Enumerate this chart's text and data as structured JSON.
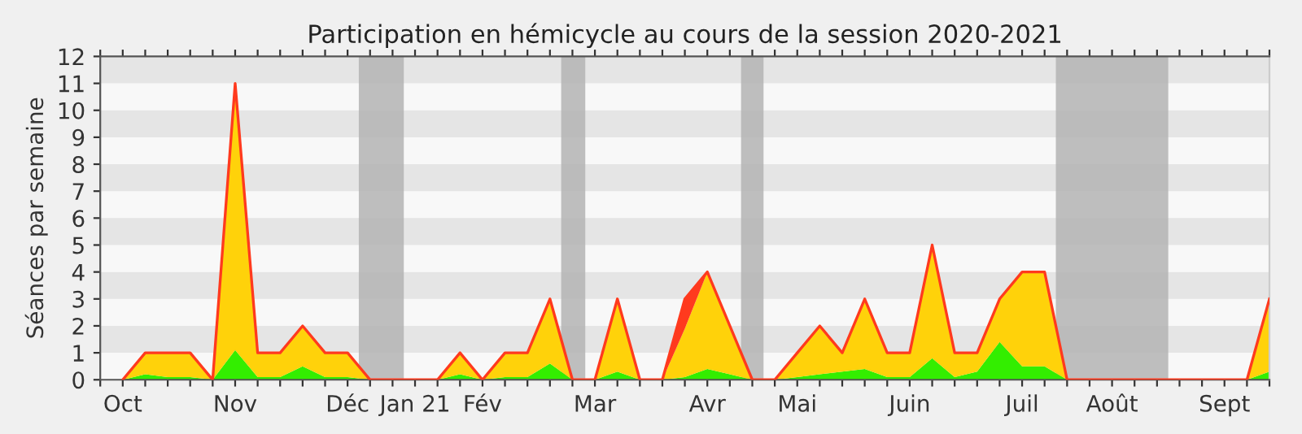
{
  "chart_data": {
    "type": "area",
    "stacked": true,
    "title": "Participation en hémicycle au cours de la session 2020-2021",
    "ylabel": "Séances par semaine",
    "x": [
      "2020-10-05",
      "2020-10-12",
      "2020-10-19",
      "2020-10-26",
      "2020-11-02",
      "2020-11-09",
      "2020-11-16",
      "2020-11-23",
      "2020-11-30",
      "2020-12-07",
      "2020-12-14",
      "2020-12-21",
      "2020-12-28",
      "2021-01-04",
      "2021-01-11",
      "2021-01-18",
      "2021-01-25",
      "2021-02-01",
      "2021-02-08",
      "2021-02-15",
      "2021-02-22",
      "2021-03-01",
      "2021-03-08",
      "2021-03-15",
      "2021-03-22",
      "2021-03-29",
      "2021-04-05",
      "2021-04-12",
      "2021-04-19",
      "2021-04-26",
      "2021-05-03",
      "2021-05-10",
      "2021-05-17",
      "2021-05-24",
      "2021-05-31",
      "2021-06-07",
      "2021-06-14",
      "2021-06-21",
      "2021-06-28",
      "2021-07-05",
      "2021-07-12",
      "2021-07-19",
      "2021-07-26",
      "2021-08-02",
      "2021-08-09",
      "2021-08-16",
      "2021-08-23",
      "2021-08-30",
      "2021-09-06",
      "2021-09-13",
      "2021-09-20",
      "2021-09-27"
    ],
    "series": [
      {
        "color": "#33ee00",
        "values": [
          0,
          0.2,
          0.1,
          0.1,
          0,
          1.1,
          0.1,
          0.1,
          0.5,
          0.1,
          0.1,
          0,
          0,
          0,
          0,
          0.2,
          0,
          0.1,
          0.1,
          0.6,
          0,
          0,
          0.3,
          0,
          0,
          0.1,
          0.4,
          0.2,
          0,
          0,
          0.1,
          0.2,
          0.3,
          0.4,
          0.1,
          0.1,
          0.8,
          0.1,
          0.3,
          1.4,
          0.5,
          0.5,
          0,
          0,
          0,
          0,
          0,
          0,
          0,
          0,
          0,
          0.3
        ]
      },
      {
        "color": "#ffd20a",
        "values": [
          0,
          0.8,
          0.9,
          0.9,
          0,
          9.9,
          0.9,
          0.9,
          1.5,
          0.9,
          0.9,
          0,
          0,
          0,
          0,
          0.8,
          0,
          0.9,
          0.9,
          2.4,
          0,
          0,
          2.7,
          0,
          0,
          1.8,
          3.6,
          1.8,
          0,
          0,
          0.9,
          1.8,
          0.7,
          2.6,
          0.9,
          0.9,
          4.2,
          0.9,
          0.7,
          1.6,
          3.5,
          3.5,
          0,
          0,
          0,
          0,
          0,
          0,
          0,
          0,
          0,
          2.7
        ]
      },
      {
        "color": "#ff3a1e",
        "values": [
          null,
          null,
          null,
          null,
          null,
          null,
          null,
          null,
          null,
          null,
          null,
          null,
          null,
          null,
          null,
          null,
          null,
          null,
          null,
          null,
          null,
          null,
          null,
          null,
          0,
          1.1,
          0,
          null,
          null,
          null,
          null,
          null,
          null,
          null,
          null,
          null,
          null,
          null,
          null,
          null,
          null,
          null,
          null,
          null,
          null,
          null,
          null,
          null,
          null,
          null,
          null,
          null
        ]
      }
    ],
    "xlim": [
      "2020-09-28",
      "2021-09-27"
    ],
    "ylim": [
      0,
      12
    ],
    "yticks": [
      0,
      1,
      2,
      3,
      4,
      5,
      6,
      7,
      8,
      9,
      10,
      11,
      12
    ],
    "xticks": [
      {
        "value": "2020-09-28",
        "label": null
      },
      {
        "value": "2020-10-05",
        "label": "Oct"
      },
      {
        "value": "2020-10-12",
        "label": null
      },
      {
        "value": "2020-10-19",
        "label": null
      },
      {
        "value": "2020-10-26",
        "label": null
      },
      {
        "value": "2020-11-02",
        "label": null
      },
      {
        "value": "2020-11-09",
        "label": "Nov"
      },
      {
        "value": "2020-11-16",
        "label": null
      },
      {
        "value": "2020-11-23",
        "label": null
      },
      {
        "value": "2020-11-30",
        "label": null
      },
      {
        "value": "2020-12-07",
        "label": null
      },
      {
        "value": "2020-12-14",
        "label": "Déc"
      },
      {
        "value": "2020-12-21",
        "label": null
      },
      {
        "value": "2020-12-28",
        "label": null
      },
      {
        "value": "2021-01-04",
        "label": "Jan 21"
      },
      {
        "value": "2021-01-11",
        "label": null
      },
      {
        "value": "2021-01-18",
        "label": null
      },
      {
        "value": "2021-01-25",
        "label": "Fév"
      },
      {
        "value": "2021-02-01",
        "label": null
      },
      {
        "value": "2021-02-08",
        "label": null
      },
      {
        "value": "2021-02-15",
        "label": null
      },
      {
        "value": "2021-02-22",
        "label": null
      },
      {
        "value": "2021-03-01",
        "label": "Mar"
      },
      {
        "value": "2021-03-08",
        "label": null
      },
      {
        "value": "2021-03-15",
        "label": null
      },
      {
        "value": "2021-03-22",
        "label": null
      },
      {
        "value": "2021-03-29",
        "label": null
      },
      {
        "value": "2021-04-05",
        "label": "Avr"
      },
      {
        "value": "2021-04-12",
        "label": null
      },
      {
        "value": "2021-04-19",
        "label": null
      },
      {
        "value": "2021-04-26",
        "label": null
      },
      {
        "value": "2021-05-03",
        "label": "Mai"
      },
      {
        "value": "2021-05-10",
        "label": null
      },
      {
        "value": "2021-05-17",
        "label": null
      },
      {
        "value": "2021-05-24",
        "label": null
      },
      {
        "value": "2021-05-31",
        "label": null
      },
      {
        "value": "2021-06-07",
        "label": "Juin"
      },
      {
        "value": "2021-06-14",
        "label": null
      },
      {
        "value": "2021-06-21",
        "label": null
      },
      {
        "value": "2021-06-28",
        "label": null
      },
      {
        "value": "2021-07-05",
        "label": null
      },
      {
        "value": "2021-07-12",
        "label": "Juil"
      },
      {
        "value": "2021-07-19",
        "label": null
      },
      {
        "value": "2021-07-26",
        "label": null
      },
      {
        "value": "2021-08-02",
        "label": null
      },
      {
        "value": "2021-08-09",
        "label": "Août"
      },
      {
        "value": "2021-08-16",
        "label": null
      },
      {
        "value": "2021-08-23",
        "label": null
      },
      {
        "value": "2021-08-30",
        "label": null
      },
      {
        "value": "2021-09-06",
        "label": null
      },
      {
        "value": "2021-09-13",
        "label": "Sept"
      },
      {
        "value": "2021-09-20",
        "label": null
      },
      {
        "value": "2021-09-27",
        "label": null
      }
    ],
    "bands": [
      {
        "axis": "x",
        "from": "2020-12-17T12:00",
        "to": "2020-12-31T12:00",
        "color": "#b4b4b4"
      },
      {
        "axis": "x",
        "from": "2021-02-18T12:00",
        "to": "2021-02-26",
        "color": "#b4b4b4"
      },
      {
        "axis": "x",
        "from": "2021-04-15T12:00",
        "to": "2021-04-22T12:00",
        "color": "#b4b4b4"
      },
      {
        "axis": "x",
        "from": "2021-07-22T12:00",
        "to": "2021-08-26T12:00",
        "color": "#b4b4b4"
      }
    ]
  }
}
